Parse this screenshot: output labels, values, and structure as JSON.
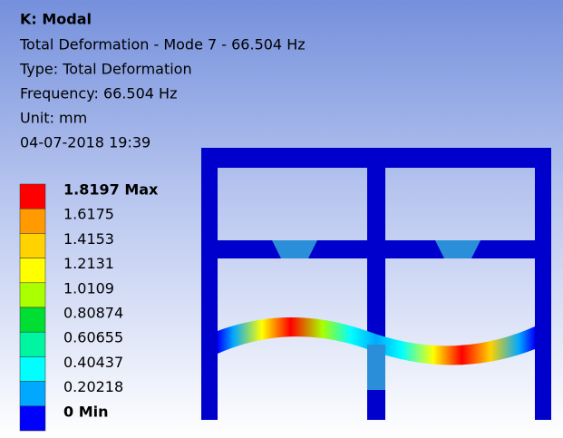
{
  "header": {
    "title": "K: Modal",
    "lines": [
      "Total Deformation - Mode 7 - 66.504 Hz",
      "Type: Total Deformation",
      "Frequency: 66.504 Hz",
      "Unit: mm",
      "04-07-2018 19:39"
    ]
  },
  "legend": [
    {
      "label": "1.8197 Max",
      "color": "#ff0000"
    },
    {
      "label": "1.6175",
      "color": "#ff9a00"
    },
    {
      "label": "1.4153",
      "color": "#ffd200"
    },
    {
      "label": "1.2131",
      "color": "#ffff00"
    },
    {
      "label": "1.0109",
      "color": "#aaff00"
    },
    {
      "label": "0.80874",
      "color": "#00dd33"
    },
    {
      "label": "0.60655",
      "color": "#00f5a0"
    },
    {
      "label": "0.40437",
      "color": "#00ffff"
    },
    {
      "label": "0.20218",
      "color": "#00a8ff"
    },
    {
      "label": "0 Min",
      "color": "#0000ff"
    }
  ]
}
